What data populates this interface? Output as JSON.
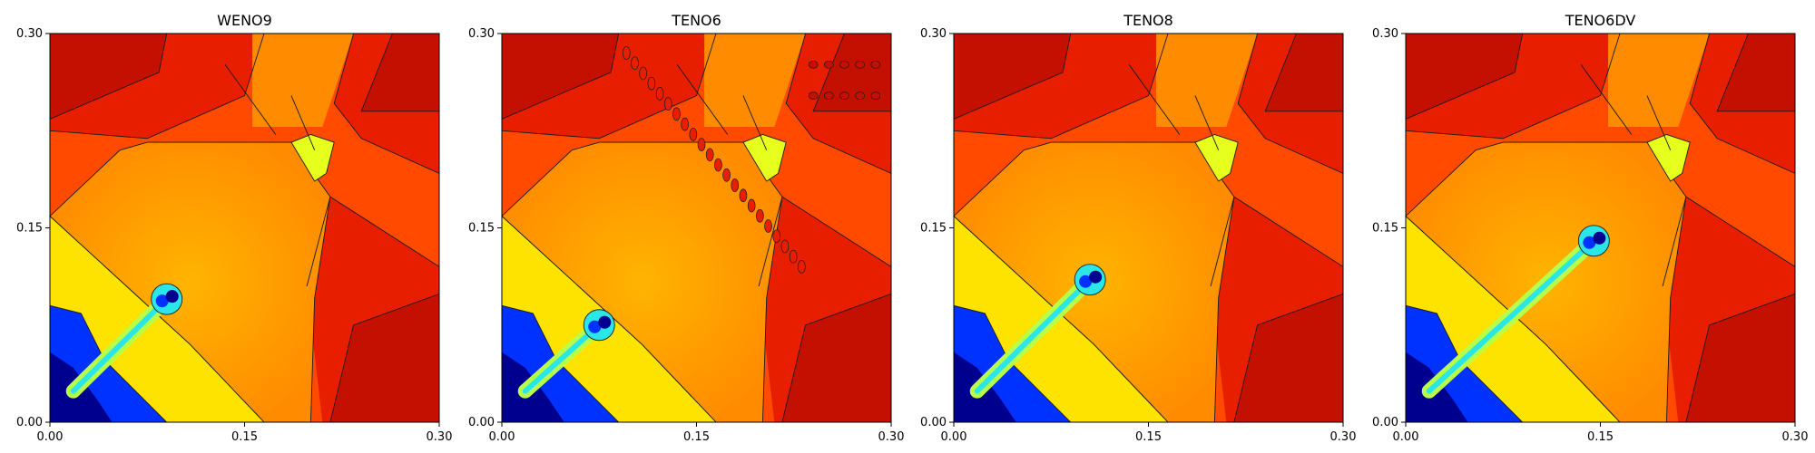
{
  "chart_data": [
    {
      "type": "heatmap",
      "title": "WENO9",
      "xlabel": "",
      "ylabel": "",
      "xlim": [
        0.0,
        0.3
      ],
      "ylim": [
        0.0,
        0.3
      ],
      "xticks": [
        "0.00",
        "0.15",
        "0.30"
      ],
      "yticks": [
        "0.00",
        "0.15",
        "0.30"
      ],
      "colormap": "jet",
      "features": {
        "upper_left_red_triangle": true,
        "upper_right_red_triangle": true,
        "lower_right_red_triangle": true,
        "central_orange_plateau": true,
        "diagonal_jet_tip": [
          0.09,
          0.095
        ],
        "blue_corner_region": true
      }
    },
    {
      "type": "heatmap",
      "title": "TENO6",
      "xlabel": "",
      "ylabel": "",
      "xlim": [
        0.0,
        0.3
      ],
      "ylim": [
        0.0,
        0.3
      ],
      "xticks": [
        "0.00",
        "0.15",
        "0.30"
      ],
      "yticks": [
        "0.00",
        "0.15",
        "0.30"
      ],
      "colormap": "jet",
      "features": {
        "upper_left_red_triangle": true,
        "upper_right_red_triangle": true,
        "lower_right_red_triangle": true,
        "central_orange_plateau": true,
        "diagonal_jet_tip": [
          0.075,
          0.075
        ],
        "blue_corner_region": true,
        "spurious_oscillations": true
      }
    },
    {
      "type": "heatmap",
      "title": "TENO8",
      "xlabel": "",
      "ylabel": "",
      "xlim": [
        0.0,
        0.3
      ],
      "ylim": [
        0.0,
        0.3
      ],
      "xticks": [
        "0.00",
        "0.15",
        "0.30"
      ],
      "yticks": [
        "0.00",
        "0.15",
        "0.30"
      ],
      "colormap": "jet",
      "features": {
        "upper_left_red_triangle": true,
        "upper_right_red_triangle": true,
        "lower_right_red_triangle": true,
        "central_orange_plateau": true,
        "diagonal_jet_tip": [
          0.105,
          0.11
        ],
        "blue_corner_region": true
      }
    },
    {
      "type": "heatmap",
      "title": "TENO6DV",
      "xlabel": "",
      "ylabel": "",
      "xlim": [
        0.0,
        0.3
      ],
      "ylim": [
        0.0,
        0.3
      ],
      "xticks": [
        "0.00",
        "0.15",
        "0.30"
      ],
      "yticks": [
        "0.00",
        "0.15",
        "0.30"
      ],
      "colormap": "jet",
      "features": {
        "upper_left_red_triangle": true,
        "upper_right_red_triangle": true,
        "lower_right_red_triangle": true,
        "central_orange_plateau": true,
        "diagonal_jet_tip": [
          0.145,
          0.14
        ],
        "blue_corner_region": true
      }
    }
  ],
  "colors": {
    "deep_red": "#c41000",
    "red": "#e81e00",
    "red_orange": "#ff4a00",
    "orange": "#ff8c00",
    "light_orange": "#ffb400",
    "yellow_orange": "#ffc400",
    "yellow": "#ffe300",
    "yellow_green": "#e6ff1c",
    "pale_green": "#b8ff4a",
    "cyan": "#2ae6e6",
    "blue": "#0032ff",
    "navy": "#00008f",
    "contour": "#1a1a1a"
  }
}
